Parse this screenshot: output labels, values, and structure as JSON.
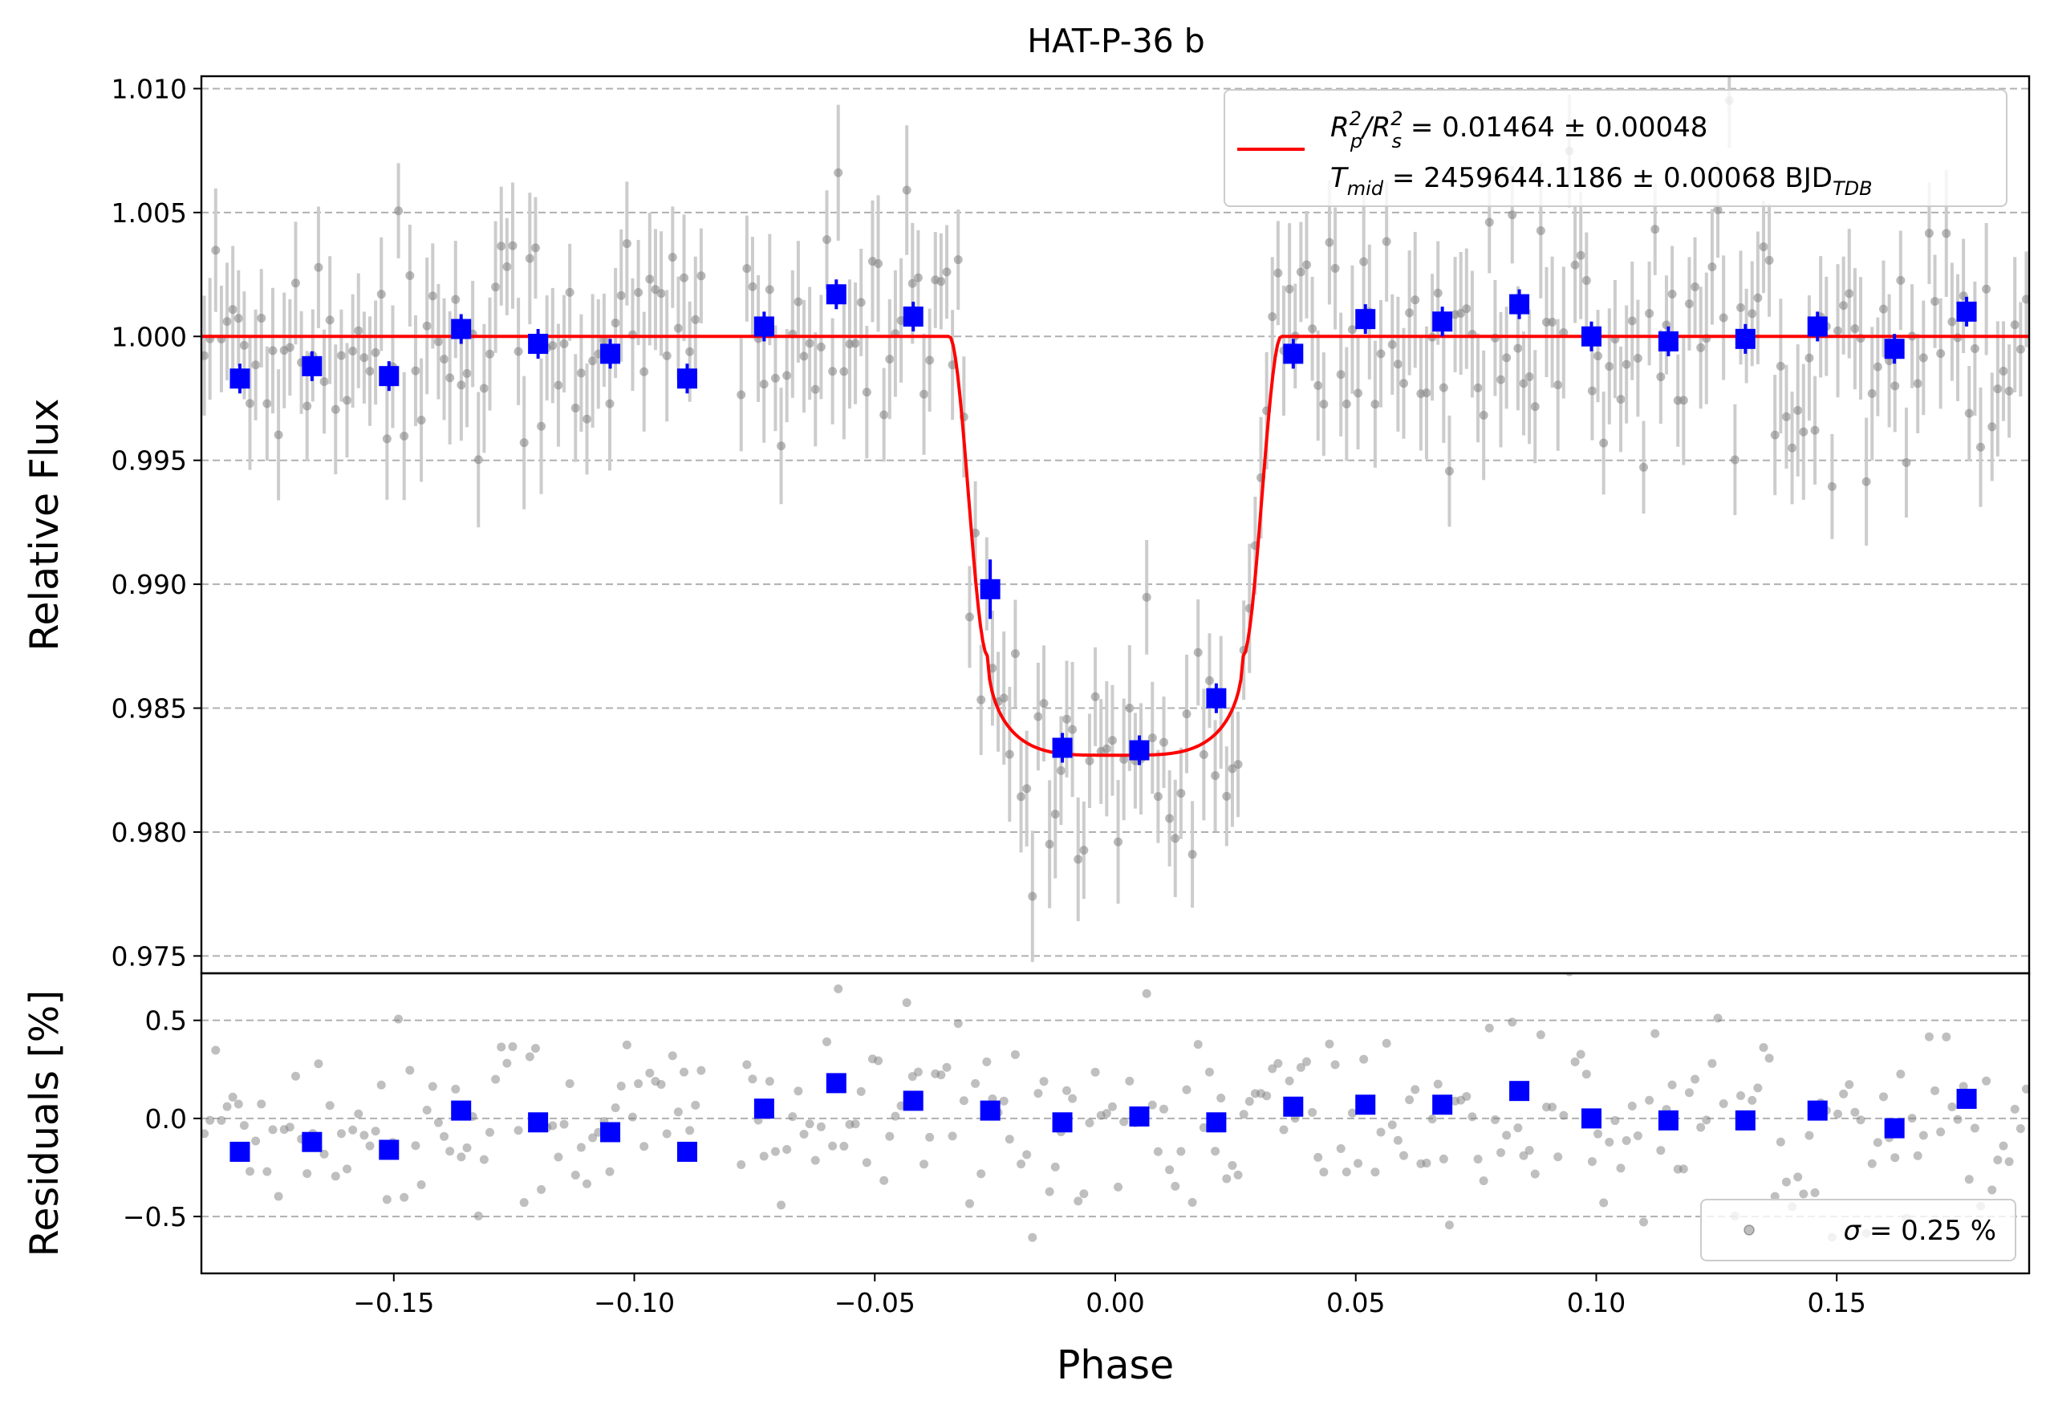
{
  "chart_data": [
    {
      "type": "scatter",
      "panel": "transit",
      "title": "HAT-P-36 b",
      "ylabel": "Relative Flux",
      "xlabel": "",
      "xlim": [
        -0.19,
        0.19
      ],
      "ylim": [
        0.9743,
        1.0105
      ],
      "grid": "horizontal dashed",
      "yticks": [
        0.975,
        0.98,
        0.985,
        0.99,
        0.995,
        1.0,
        1.005,
        1.01
      ],
      "ytick_labels": [
        "0.975",
        "0.980",
        "0.985",
        "0.990",
        "0.995",
        "1.000",
        "1.005",
        "1.010"
      ],
      "legend": {
        "placement": "top-right",
        "line1": {
          "prefix": "R",
          "sub1": "p",
          "sup1": "2",
          "mid": "/R",
          "sub2": "s",
          "sup2": "2",
          "value": " = 0.01464 ± 0.00048"
        },
        "line2": {
          "prefix": "T",
          "sub1": "mid",
          "value": " = 2459644.1186 ± 0.00068 BJD",
          "suffix_sub": "TDB"
        }
      },
      "model": {
        "name": "transit model",
        "color": "#ff0000",
        "depth": 0.01464,
        "t_contact_outer": 0.0345,
        "t_contact_inner": 0.0265,
        "baseline": 1.0,
        "bottom_center": 0.9831
      },
      "binned": {
        "color": "#0000ff",
        "x": [
          -0.182,
          -0.167,
          -0.151,
          -0.136,
          -0.12,
          -0.105,
          -0.089,
          -0.073,
          -0.058,
          -0.042,
          -0.026,
          -0.011,
          0.005,
          0.021,
          0.037,
          0.052,
          0.068,
          0.084,
          0.099,
          0.115,
          0.131,
          0.146,
          0.162,
          0.177
        ],
        "y": [
          0.9983,
          0.9988,
          0.9984,
          1.0003,
          0.9997,
          0.9993,
          0.9983,
          1.0004,
          1.0017,
          1.0008,
          0.9898,
          0.9834,
          0.9833,
          0.9854,
          0.9993,
          1.0007,
          1.0006,
          1.0013,
          1.0,
          0.9998,
          0.9999,
          1.0004,
          0.9995,
          1.001
        ],
        "yerr": [
          0.0006,
          0.0006,
          0.0006,
          0.0006,
          0.0006,
          0.0006,
          0.0006,
          0.0006,
          0.0006,
          0.0006,
          0.0012,
          0.0006,
          0.0006,
          0.0006,
          0.0006,
          0.0006,
          0.0006,
          0.0006,
          0.0006,
          0.0006,
          0.0006,
          0.0006,
          0.0006,
          0.0006
        ]
      },
      "raw": {
        "color": "#808080",
        "errorbar_color": "#cccccc",
        "x_range": [
          -0.19,
          0.19
        ],
        "n_points": 320,
        "typical_yerr": 0.0023,
        "scatter_sigma": 0.0025
      }
    },
    {
      "type": "scatter",
      "panel": "residuals",
      "title": "",
      "ylabel": "Residuals [%]",
      "xlabel": "Phase",
      "xlim": [
        -0.19,
        0.19
      ],
      "ylim": [
        -0.79,
        0.74
      ],
      "grid": "horizontal dashed",
      "yticks": [
        -0.5,
        0.0,
        0.5
      ],
      "ytick_labels": [
        "−0.5",
        "0.0",
        "0.5"
      ],
      "xticks": [
        -0.15,
        -0.1,
        -0.05,
        0.0,
        0.05,
        0.1,
        0.15
      ],
      "xtick_labels": [
        "−0.15",
        "−0.10",
        "−0.05",
        "0.00",
        "0.05",
        "0.10",
        "0.15"
      ],
      "legend": {
        "placement": "bottom-right",
        "label_sym": "σ",
        "label_value": " = 0.25 %"
      },
      "binned": {
        "color": "#0000ff",
        "x": [
          -0.182,
          -0.167,
          -0.151,
          -0.136,
          -0.12,
          -0.105,
          -0.089,
          -0.073,
          -0.058,
          -0.042,
          -0.026,
          -0.011,
          0.005,
          0.021,
          0.037,
          0.052,
          0.068,
          0.084,
          0.099,
          0.115,
          0.131,
          0.146,
          0.162,
          0.177
        ],
        "y": [
          -0.17,
          -0.12,
          -0.16,
          0.04,
          -0.02,
          -0.07,
          -0.17,
          0.05,
          0.18,
          0.09,
          0.04,
          -0.02,
          0.01,
          -0.02,
          0.06,
          0.07,
          0.07,
          0.14,
          0.0,
          -0.01,
          -0.01,
          0.04,
          -0.05,
          0.1
        ]
      },
      "raw": {
        "color": "#808080",
        "scatter_sigma": 0.25
      }
    }
  ]
}
